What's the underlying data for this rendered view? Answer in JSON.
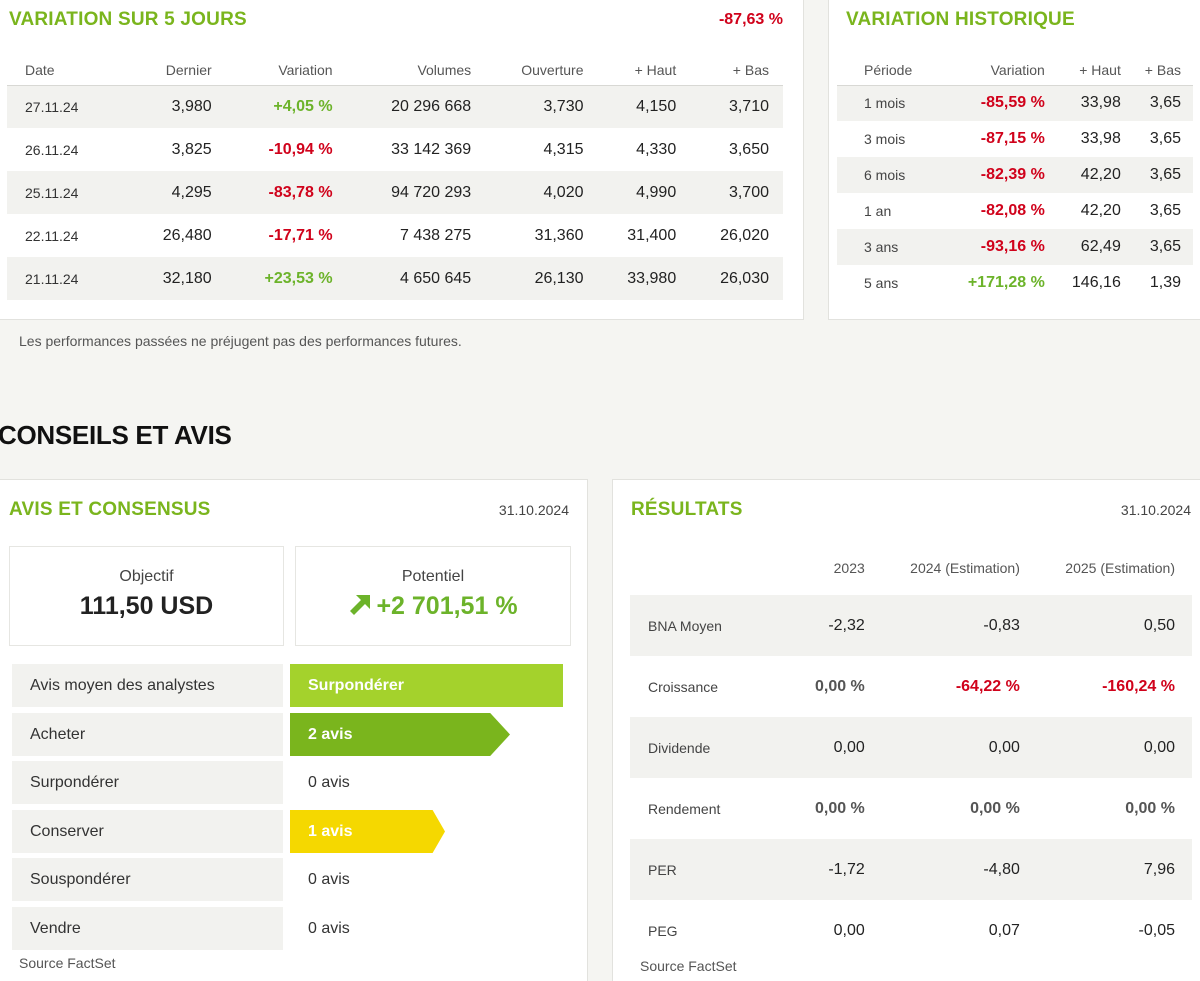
{
  "variation5": {
    "title": "VARIATION SUR 5 JOURS",
    "total": "-87,63 %",
    "headers": [
      "Date",
      "Dernier",
      "Variation",
      "Volumes",
      "Ouverture",
      "+ Haut",
      "+ Bas"
    ],
    "rows": [
      [
        "27.11.24",
        "3,980",
        "+4,05 %",
        "20 296 668",
        "3,730",
        "4,150",
        "3,710"
      ],
      [
        "26.11.24",
        "3,825",
        "-10,94 %",
        "33 142 369",
        "4,315",
        "4,330",
        "3,650"
      ],
      [
        "25.11.24",
        "4,295",
        "-83,78 %",
        "94 720 293",
        "4,020",
        "4,990",
        "3,700"
      ],
      [
        "22.11.24",
        "26,480",
        "-17,71 %",
        "7 438 275",
        "31,360",
        "31,400",
        "26,020"
      ],
      [
        "21.11.24",
        "32,180",
        "+23,53 %",
        "4 650 645",
        "26,130",
        "33,980",
        "26,030"
      ]
    ]
  },
  "historique": {
    "title": "VARIATION HISTORIQUE",
    "headers": [
      "Période",
      "Variation",
      "+ Haut",
      "+ Bas"
    ],
    "rows": [
      [
        "1 mois",
        "-85,59 %",
        "33,98",
        "3,65"
      ],
      [
        "3 mois",
        "-87,15 %",
        "33,98",
        "3,65"
      ],
      [
        "6 mois",
        "-82,39 %",
        "42,20",
        "3,65"
      ],
      [
        "1 an",
        "-82,08 %",
        "42,20",
        "3,65"
      ],
      [
        "3 ans",
        "-93,16 %",
        "62,49",
        "3,65"
      ],
      [
        "5 ans",
        "+171,28 %",
        "146,16",
        "1,39"
      ]
    ]
  },
  "disclaimer": "Les performances passées ne préjugent pas des performances futures.",
  "section_title": "CONSEILS ET AVIS",
  "avis": {
    "title": "AVIS ET CONSENSUS",
    "date": "31.10.2024",
    "objectif_label": "Objectif",
    "objectif_value": "111,50 USD",
    "potentiel_label": "Potentiel",
    "potentiel_value": "+2 701,51 %",
    "rows": [
      {
        "label": "Avis moyen des analystes",
        "value": "Surpondérer"
      },
      {
        "label": "Acheter",
        "value": "2 avis"
      },
      {
        "label": "Surpondérer",
        "value": "0 avis"
      },
      {
        "label": "Conserver",
        "value": "1 avis"
      },
      {
        "label": "Souspondérer",
        "value": "0 avis"
      },
      {
        "label": "Vendre",
        "value": "0 avis"
      }
    ],
    "source": "Source FactSet",
    "colors": {
      "surponderer": "#a4d22c",
      "acheter": "#7ab51d",
      "conserver": "#f5d800"
    }
  },
  "resultats": {
    "title": "RÉSULTATS",
    "date": "31.10.2024",
    "headers": [
      "",
      "2023",
      "2024 (Estimation)",
      "2025 (Estimation)"
    ],
    "rows": [
      [
        "BNA Moyen",
        "-2,32",
        "-0,83",
        "0,50"
      ],
      [
        "Croissance",
        "0,00 %",
        "-64,22 %",
        "-160,24 %"
      ],
      [
        "Dividende",
        "0,00",
        "0,00",
        "0,00"
      ],
      [
        "Rendement",
        "0,00 %",
        "0,00 %",
        "0,00 %"
      ],
      [
        "PER",
        "-1,72",
        "-4,80",
        "7,96"
      ],
      [
        "PEG",
        "0,00",
        "0,07",
        "-0,05"
      ]
    ],
    "source": "Source FactSet"
  }
}
